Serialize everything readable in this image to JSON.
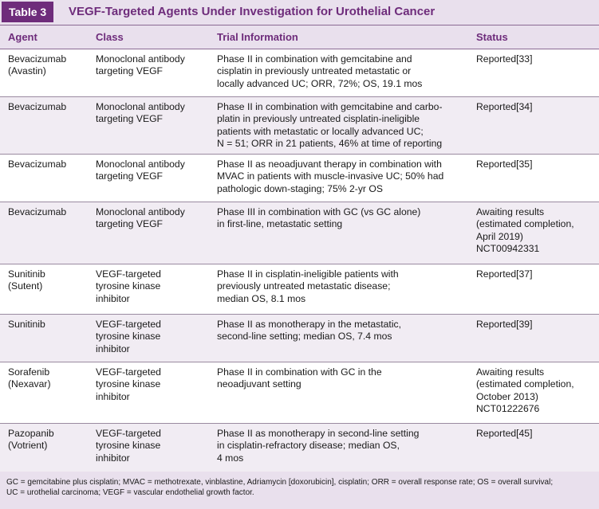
{
  "table": {
    "label": "Table 3",
    "title": "VEGF-Targeted Agents Under Investigation for Urothelial Cancer",
    "headers": {
      "agent": "Agent",
      "class": "Class",
      "trial": "Trial Information",
      "status": "Status"
    },
    "rows": [
      {
        "agent": "Bevacizumab\n(Avastin)",
        "class": "Monoclonal antibody\ntargeting VEGF",
        "trial": "Phase II in combination with gemcitabine and\ncisplatin in previously untreated metastatic or\nlocally advanced UC; ORR, 72%; OS, 19.1 mos",
        "status": "Reported[33]"
      },
      {
        "agent": "Bevacizumab",
        "class": "Monoclonal antibody\ntargeting VEGF",
        "trial": "Phase II in combination with gemcitabine and carbo-\nplatin in previously untreated cisplatin-ineligible\npatients with metastatic or locally advanced UC;\nN = 51; ORR in 21 patients, 46% at time of reporting",
        "status": "Reported[34]"
      },
      {
        "agent": "Bevacizumab",
        "class": "Monoclonal antibody\ntargeting VEGF",
        "trial": "Phase II as neoadjuvant therapy in combination with\nMVAC in patients with muscle-invasive UC; 50% had\npathologic down-staging; 75% 2-yr OS",
        "status": "Reported[35]"
      },
      {
        "agent": "Bevacizumab",
        "class": "Monoclonal antibody\ntargeting VEGF",
        "trial": "Phase III in combination with GC (vs GC alone)\nin first-line, metastatic setting",
        "status": "Awaiting results\n(estimated completion,\nApril 2019)\nNCT00942331"
      },
      {
        "agent": "Sunitinib\n(Sutent)",
        "class": "VEGF-targeted\ntyrosine kinase\ninhibitor",
        "trial": "Phase II in cisplatin-ineligible patients with\npreviously untreated metastatic disease;\nmedian OS, 8.1 mos",
        "status": "Reported[37]"
      },
      {
        "agent": "Sunitinib",
        "class": "VEGF-targeted\ntyrosine kinase\ninhibitor",
        "trial": "Phase II as monotherapy in the metastatic,\nsecond-line setting; median OS, 7.4 mos",
        "status": "Reported[39]"
      },
      {
        "agent": "Sorafenib\n(Nexavar)",
        "class": "VEGF-targeted\ntyrosine kinase\ninhibitor",
        "trial": "Phase II in combination with GC in the\nneoadjuvant setting",
        "status": "Awaiting results\n(estimated completion,\nOctober 2013)\nNCT01222676"
      },
      {
        "agent": "Pazopanib\n(Votrient)",
        "class": "VEGF-targeted\ntyrosine kinase\ninhibitor",
        "trial": "Phase II as monotherapy in second-line setting\nin cisplatin-refractory disease; median OS,\n4 mos",
        "status": "Reported[45]"
      }
    ],
    "footnote": "GC = gemcitabine plus cisplatin; MVAC = methotrexate, vinblastine, Adriamycin [doxorubicin], cisplatin; ORR = overall response rate; OS = overall survival;\nUC = urothelial carcinoma; VEGF = vascular endothelial growth factor."
  }
}
